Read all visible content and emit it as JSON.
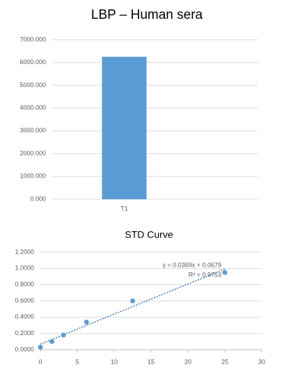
{
  "chart_data": [
    {
      "type": "bar",
      "title": "LBP – Human sera",
      "categories": [
        "T1"
      ],
      "values": [
        6250
      ],
      "color": "#5b9bd5",
      "ylim": [
        0,
        7000
      ],
      "yticks": [
        {
          "value": 0,
          "label": "0.000"
        },
        {
          "value": 1000,
          "label": "1000.000"
        },
        {
          "value": 2000,
          "label": "2000.000"
        },
        {
          "value": 3000,
          "label": "3000.000"
        },
        {
          "value": 4000,
          "label": "4000.000"
        },
        {
          "value": 5000,
          "label": "5000.000"
        },
        {
          "value": 6000,
          "label": "6000.000"
        },
        {
          "value": 7000,
          "label": "7000.000"
        }
      ],
      "grid": true
    },
    {
      "type": "scatter",
      "title": "STD Curve",
      "x": [
        0,
        1.5625,
        3.125,
        6.25,
        12.5,
        25
      ],
      "values": [
        0.03,
        0.1,
        0.18,
        0.34,
        0.6,
        0.95
      ],
      "color": "#5b9bd5",
      "trendline": true,
      "annotations": [
        "y = 0.0369x + 0.0679",
        "R² = 0.9753"
      ],
      "xlim": [
        0,
        30
      ],
      "xticks": [
        0,
        5,
        10,
        15,
        20,
        25,
        30
      ],
      "ylim": [
        0,
        1.2
      ],
      "yticks": [
        {
          "value": 0,
          "label": "0.0000"
        },
        {
          "value": 0.2,
          "label": "0.2000"
        },
        {
          "value": 0.4,
          "label": "0.4000"
        },
        {
          "value": 0.6,
          "label": "0.6000"
        },
        {
          "value": 0.8,
          "label": "0.8000"
        },
        {
          "value": 1,
          "label": "1.0000"
        },
        {
          "value": 1.2,
          "label": "1.2000"
        }
      ],
      "grid": true
    }
  ]
}
